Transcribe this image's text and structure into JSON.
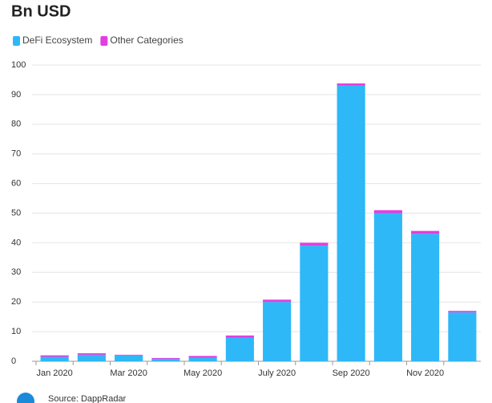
{
  "chart_data": {
    "type": "stacked_bar",
    "title": "Bn USD",
    "categories": [
      "Jan 2020",
      null,
      "Mar 2020",
      null,
      "May 2020",
      null,
      "July 2020",
      null,
      "Sep 2020",
      null,
      "Nov 2020",
      null
    ],
    "series": [
      {
        "name": "DeFi Ecosystem",
        "color": "#2eb8f7",
        "values": [
          1.5,
          2.2,
          2,
          0.8,
          1.2,
          8,
          20,
          39,
          93,
          50,
          43,
          16.5
        ]
      },
      {
        "name": "Other Categories",
        "color": "#e23fe0",
        "values": [
          0.5,
          0.5,
          0.2,
          0.3,
          0.6,
          0.7,
          0.8,
          1,
          0.8,
          1,
          1,
          0.5
        ]
      }
    ],
    "ylim": [
      0,
      100
    ],
    "yticks": [
      0,
      10,
      20,
      30,
      40,
      50,
      60,
      70,
      80,
      90,
      100
    ],
    "grid": true,
    "source": "Source: DappRadar"
  }
}
